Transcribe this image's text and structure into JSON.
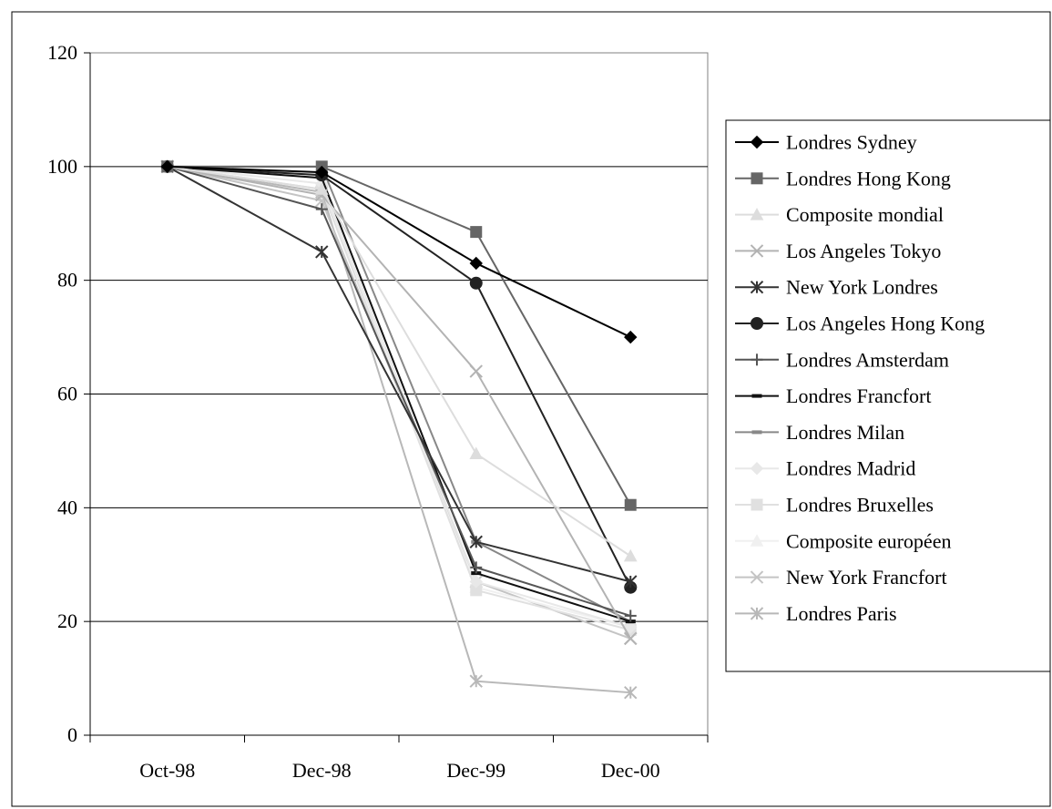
{
  "chart_data": {
    "type": "line",
    "title": "",
    "xlabel": "",
    "ylabel": "",
    "categories": [
      "Oct-98",
      "Dec-98",
      "Dec-99",
      "Dec-00"
    ],
    "ylim": [
      0,
      120
    ],
    "y_ticks": [
      "0",
      "20",
      "40",
      "60",
      "80",
      "100",
      "120"
    ],
    "grid": "horizontal",
    "legend_position": "right",
    "series": [
      {
        "name": "Londres Sydney",
        "values": [
          100,
          99,
          83,
          70
        ],
        "color": "#000000",
        "marker": "diamond"
      },
      {
        "name": "Londres Hong Kong",
        "values": [
          100,
          100,
          88.5,
          40.5
        ],
        "color": "#666666",
        "marker": "square"
      },
      {
        "name": "Composite mondial",
        "values": [
          100,
          96,
          49.5,
          31.5
        ],
        "color": "#dddddd",
        "marker": "triangle"
      },
      {
        "name": "Los Angeles Tokyo",
        "values": [
          100,
          95,
          64,
          17
        ],
        "color": "#b3b3b3",
        "marker": "x"
      },
      {
        "name": "New York Londres",
        "values": [
          100,
          85,
          34,
          27
        ],
        "color": "#333333",
        "marker": "star"
      },
      {
        "name": "Los Angeles Hong Kong",
        "values": [
          100,
          98.5,
          79.5,
          26
        ],
        "color": "#222222",
        "marker": "circle"
      },
      {
        "name": "Londres Amsterdam",
        "values": [
          100,
          92.5,
          29.5,
          21
        ],
        "color": "#555555",
        "marker": "plus"
      },
      {
        "name": "Londres Francfort",
        "values": [
          100,
          98,
          28.5,
          20
        ],
        "color": "#111111",
        "marker": "dash"
      },
      {
        "name": "Londres Milan",
        "values": [
          100,
          100,
          34,
          20
        ],
        "color": "#888888",
        "marker": "dash"
      },
      {
        "name": "Londres Madrid",
        "values": [
          100,
          97,
          27,
          19
        ],
        "color": "#e8e8e8",
        "marker": "diamond"
      },
      {
        "name": "Londres Bruxelles",
        "values": [
          100,
          96,
          25.5,
          18.5
        ],
        "color": "#e0e0e0",
        "marker": "square"
      },
      {
        "name": "Composite européen",
        "values": [
          100,
          96,
          26,
          19
        ],
        "color": "#f0f0f0",
        "marker": "triangle"
      },
      {
        "name": "New York Francfort",
        "values": [
          100,
          94,
          27,
          17
        ],
        "color": "#c4c4c4",
        "marker": "x"
      },
      {
        "name": "Londres Paris",
        "values": [
          100,
          95.5,
          9.5,
          7.5
        ],
        "color": "#b8b8b8",
        "marker": "star"
      }
    ]
  }
}
